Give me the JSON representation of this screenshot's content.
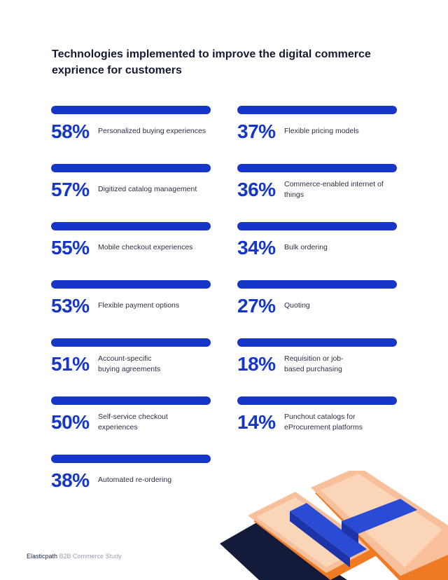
{
  "title": "Technologies implemented to improve the digital commerce exprience for customers",
  "footer": {
    "brand": "Elasticpath",
    "study": "B2B Commerce Study"
  },
  "colors": {
    "accent": "#1636c8",
    "text": "#151a33"
  },
  "chart_data": {
    "type": "bar",
    "title": "Technologies implemented to improve the digital commerce exprience for customers",
    "unit": "%",
    "ylim": [
      0,
      100
    ],
    "categories": [
      "Personalized buying experiences",
      "Digitized catalog management",
      "Mobile checkout experiences",
      "Flexible payment options",
      "Account-specific buying agreements",
      "Self-service checkout experiences",
      "Automated re-ordering",
      "Flexible pricing models",
      "Commerce-enabled internet of things",
      "Bulk ordering",
      "Quoting",
      "Requisition or job-based purchasing",
      "Punchout catalogs for eProcurement platforms"
    ],
    "values": [
      58,
      57,
      55,
      53,
      51,
      50,
      38,
      37,
      36,
      34,
      27,
      18,
      14
    ]
  },
  "left": [
    {
      "pct": "58%",
      "label": "Personalized buying experiences"
    },
    {
      "pct": "57%",
      "label": "Digitized catalog management"
    },
    {
      "pct": "55%",
      "label": "Mobile checkout experiences"
    },
    {
      "pct": "53%",
      "label": "Flexible payment options"
    },
    {
      "pct": "51%",
      "label": "Account-specific buying agreements"
    },
    {
      "pct": "50%",
      "label": "Self-service checkout experiences"
    },
    {
      "pct": "38%",
      "label": "Automated re-ordering"
    }
  ],
  "right": [
    {
      "pct": "37%",
      "label": "Flexible pricing models"
    },
    {
      "pct": "36%",
      "label": "Commerce-enabled internet of things"
    },
    {
      "pct": "34%",
      "label": "Bulk ordering"
    },
    {
      "pct": "27%",
      "label": "Quoting"
    },
    {
      "pct": "18%",
      "label": "Requisition or job-based purchasing"
    },
    {
      "pct": "14%",
      "label": "Punchout catalogs for eProcurement platforms"
    }
  ]
}
